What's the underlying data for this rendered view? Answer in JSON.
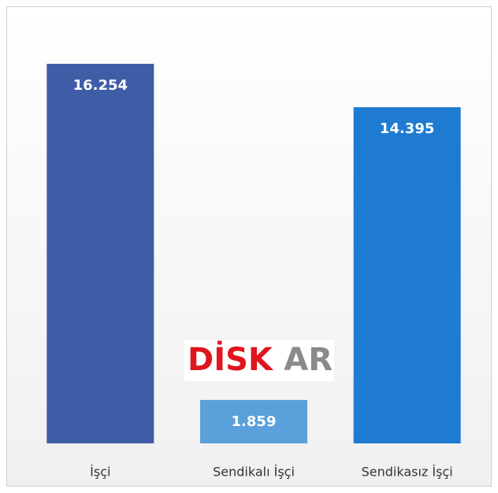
{
  "chart_data": {
    "type": "bar",
    "categories": [
      "İşçi",
      "Sendikalı İşçi",
      "Sendikasız İşçi"
    ],
    "values": [
      16254,
      1859,
      14395
    ],
    "value_labels": [
      "16.254",
      "1.859",
      "14.395"
    ],
    "colors": [
      "#3f5da6",
      "#5aa0da",
      "#1f7bd2"
    ],
    "watermark": [
      "DİSK",
      "AR"
    ]
  }
}
